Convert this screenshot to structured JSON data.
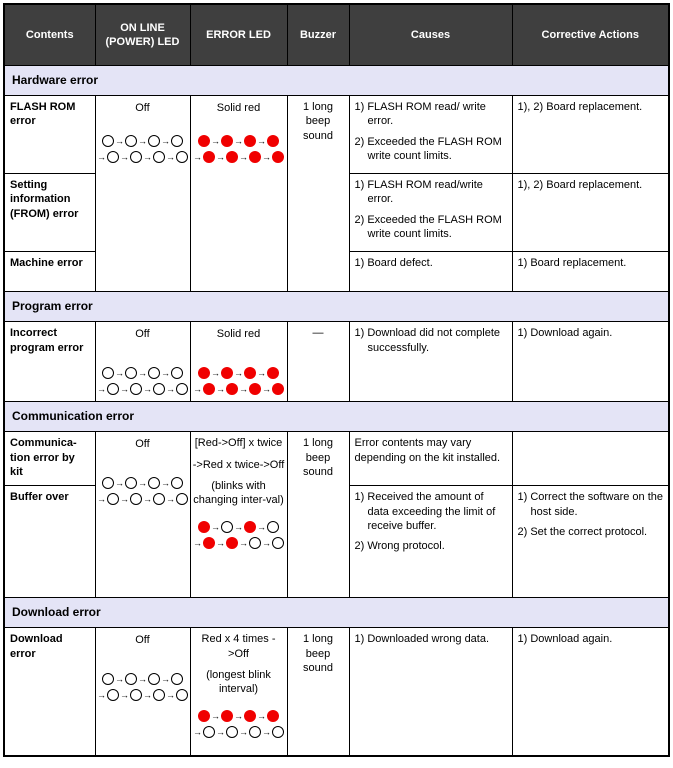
{
  "colors": {
    "header_bg": "#3f3f3f",
    "header_text": "#ffffff",
    "section_band_bg": "#e4e4f6",
    "led_red": "#f00000",
    "border": "#000000"
  },
  "header": {
    "columns": [
      "Contents",
      "ON LINE (POWER) LED",
      "ERROR LED",
      "Buzzer",
      "Causes",
      "Corrective Actions"
    ]
  },
  "led_patterns": {
    "all_off": {
      "line1": [
        "off",
        "off",
        "off",
        "off"
      ],
      "line2": [
        "off",
        "off",
        "off",
        "off"
      ]
    },
    "all_red": {
      "line1": [
        "red",
        "red",
        "red",
        "red"
      ],
      "line2": [
        "red",
        "red",
        "red",
        "red"
      ]
    },
    "red_off_alternating": {
      "line1": [
        "red",
        "off",
        "red",
        "off"
      ],
      "line2": [
        "red",
        "red",
        "off",
        "off"
      ]
    },
    "red_then_off": {
      "line1": [
        "red",
        "red",
        "red",
        "red"
      ],
      "line2": [
        "off",
        "off",
        "off",
        "off"
      ]
    }
  },
  "sections": {
    "hardware": {
      "title": "Hardware error",
      "online_led": {
        "label": "Off"
      },
      "error_led": {
        "label": "Solid red"
      },
      "buzzer": "1 long beep sound",
      "rows": [
        {
          "content": "FLASH ROM error",
          "causes": [
            "1) FLASH ROM read/ write error.",
            "2) Exceeded the FLASH ROM write count limits."
          ],
          "corrective": [
            "1), 2) Board replacement."
          ]
        },
        {
          "content": "Setting information (FROM) error",
          "causes": [
            "1) FLASH ROM read/write error.",
            "2) Exceeded the FLASH ROM write count limits."
          ],
          "corrective": [
            "1), 2) Board replacement."
          ]
        },
        {
          "content": "Machine error",
          "causes": [
            "1) Board defect."
          ],
          "corrective": [
            "1) Board replacement."
          ]
        }
      ]
    },
    "program": {
      "title": "Program error",
      "online_led": {
        "label": "Off"
      },
      "error_led": {
        "label": "Solid red"
      },
      "buzzer": "—",
      "rows": [
        {
          "content": "Incorrect program error",
          "causes": [
            "1) Download did not complete successfully."
          ],
          "corrective": [
            "1) Download again."
          ]
        }
      ]
    },
    "communication": {
      "title": "Communication error",
      "online_led": {
        "label": "Off"
      },
      "error_led": {
        "lines": [
          "[Red->Off] x twice",
          "->Red x twice->Off",
          "(blinks with changing inter-val)"
        ]
      },
      "buzzer": "1 long beep sound",
      "rows": [
        {
          "content": "Communica-tion error by kit",
          "causes": [
            "Error contents may vary depending on the kit installed."
          ],
          "corrective": []
        },
        {
          "content": "Buffer over",
          "causes": [
            "1) Received the amount of data exceeding the limit of receive buffer.",
            "2) Wrong protocol."
          ],
          "corrective": [
            "1) Correct the software on the host side.",
            "2) Set the correct protocol."
          ]
        }
      ]
    },
    "download": {
      "title": "Download error",
      "online_led": {
        "label": "Off"
      },
      "error_led": {
        "lines": [
          "Red x 4 times ->Off",
          "(longest blink interval)"
        ]
      },
      "buzzer": "1 long beep sound",
      "rows": [
        {
          "content": "Download error",
          "causes": [
            "1) Downloaded wrong data."
          ],
          "corrective": [
            "1) Download again."
          ]
        }
      ]
    }
  }
}
